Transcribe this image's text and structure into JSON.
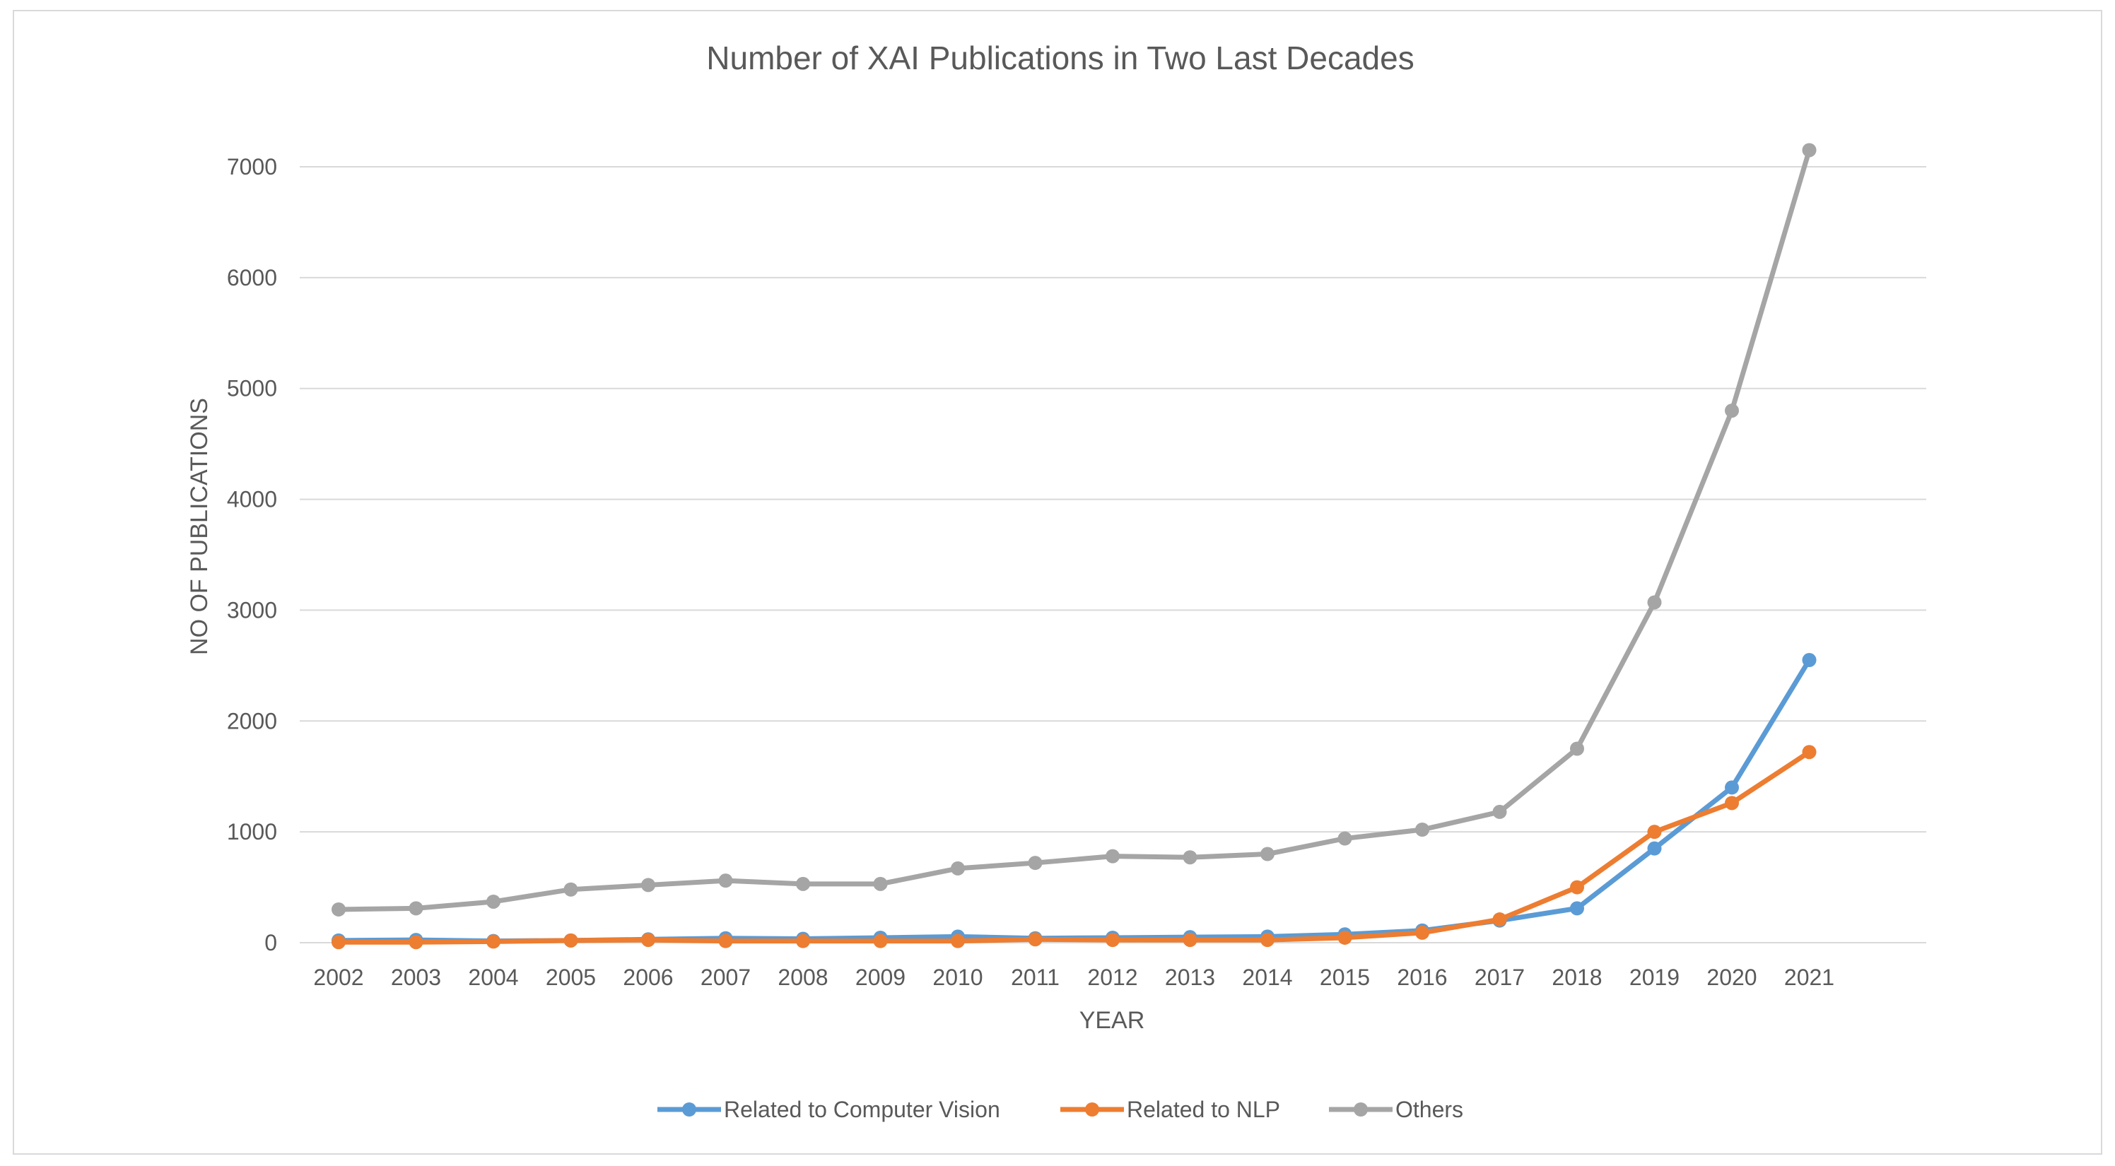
{
  "chart_data": {
    "type": "line",
    "title": "Number of XAI Publications in Two Last Decades",
    "xlabel": "YEAR",
    "ylabel": "NO OF PUBLICATIONS",
    "ylim": [
      0,
      7000
    ],
    "yticks": [
      0,
      1000,
      2000,
      3000,
      4000,
      5000,
      6000,
      7000
    ],
    "grid": true,
    "legend_position": "bottom",
    "categories": [
      "2002",
      "2003",
      "2004",
      "2005",
      "2006",
      "2007",
      "2008",
      "2009",
      "2010",
      "2011",
      "2012",
      "2013",
      "2014",
      "2015",
      "2016",
      "2017",
      "2018",
      "2019",
      "2020",
      "2021"
    ],
    "series": [
      {
        "name": "Related to Computer Vision",
        "color": "#5b9bd5",
        "values": [
          20,
          25,
          15,
          20,
          30,
          40,
          35,
          45,
          55,
          40,
          45,
          50,
          55,
          75,
          110,
          200,
          310,
          850,
          1400,
          2550
        ]
      },
      {
        "name": "Related to NLP",
        "color": "#ed7d31",
        "values": [
          5,
          5,
          10,
          20,
          25,
          15,
          15,
          15,
          15,
          30,
          25,
          25,
          25,
          45,
          90,
          210,
          500,
          1000,
          1260,
          1720
        ]
      },
      {
        "name": "Others",
        "color": "#a5a5a5",
        "values": [
          300,
          310,
          370,
          480,
          520,
          560,
          530,
          530,
          670,
          720,
          780,
          770,
          800,
          940,
          1020,
          1180,
          1750,
          3070,
          4800,
          7150
        ]
      }
    ]
  }
}
